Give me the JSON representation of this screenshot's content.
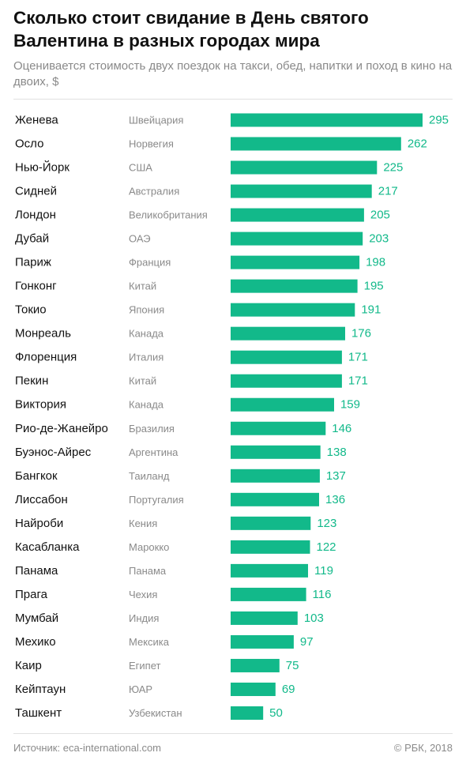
{
  "chart_data": {
    "type": "bar",
    "orientation": "horizontal",
    "title": "Сколько стоит свидание в День святого Валентина в разных городах мира",
    "subtitle": "Оценивается стоимость двух поездок на такси, обед, напитки и поход в кино на двоих, $",
    "categories": [
      "Женева",
      "Осло",
      "Нью-Йорк",
      "Сидней",
      "Лондон",
      "Дубай",
      "Париж",
      "Гонконг",
      "Токио",
      "Монреаль",
      "Флоренция",
      "Пекин",
      "Виктория",
      "Рио-де-Жанейро",
      "Буэнос-Айрес",
      "Бангкок",
      "Лиссабон",
      "Найроби",
      "Касабланка",
      "Панама",
      "Прага",
      "Мумбай",
      "Мехико",
      "Каир",
      "Кейптаун",
      "Ташкент"
    ],
    "countries": [
      "Швейцария",
      "Норвегия",
      "США",
      "Австралия",
      "Великобритания",
      "ОАЭ",
      "Франция",
      "Китай",
      "Япония",
      "Канада",
      "Италия",
      "Китай",
      "Канада",
      "Бразилия",
      "Аргентина",
      "Таиланд",
      "Португалия",
      "Кения",
      "Марокко",
      "Панама",
      "Чехия",
      "Индия",
      "Мексика",
      "Египет",
      "ЮАР",
      "Узбекистан"
    ],
    "values": [
      295,
      262,
      225,
      217,
      205,
      203,
      198,
      195,
      191,
      176,
      171,
      171,
      159,
      146,
      138,
      137,
      136,
      123,
      122,
      119,
      116,
      103,
      97,
      75,
      69,
      50
    ],
    "xlim": [
      0,
      295
    ],
    "grid": false,
    "legend": "none",
    "bar_color": "#12b98a",
    "value_label_color": "#12b98a",
    "city_color": "#111111",
    "country_color": "#8a8a8a"
  },
  "footer": {
    "source": "Источник: eca-international.com",
    "copyright": "© РБК, 2018"
  }
}
